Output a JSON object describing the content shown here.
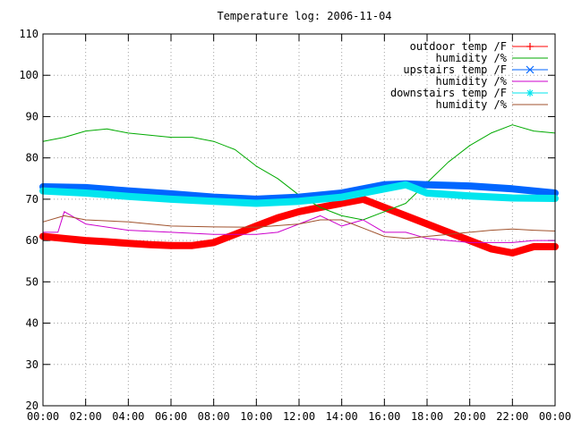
{
  "chart_data": {
    "type": "line",
    "title": "Temperature log: 2006-11-04",
    "xlabel": "",
    "ylabel": "",
    "xlim": [
      0,
      24
    ],
    "ylim": [
      20,
      110
    ],
    "x_ticks": [
      "00:00",
      "02:00",
      "04:00",
      "06:00",
      "08:00",
      "10:00",
      "12:00",
      "14:00",
      "16:00",
      "18:00",
      "20:00",
      "22:00",
      "00:00"
    ],
    "y_ticks": [
      "20",
      "30",
      "40",
      "50",
      "60",
      "70",
      "80",
      "90",
      "100",
      "110"
    ],
    "grid": true,
    "legend_position": "top-right",
    "series": [
      {
        "name": "outdoor temp /F",
        "color": "#ff0000",
        "marker": "plus",
        "x": [
          0,
          1,
          2,
          3,
          4,
          5,
          6,
          7,
          8,
          9,
          10,
          11,
          12,
          13,
          14,
          15,
          16,
          17,
          18,
          19,
          20,
          21,
          22,
          23,
          24
        ],
        "y": [
          61,
          60.5,
          60,
          59.7,
          59.3,
          59,
          58.8,
          58.8,
          59.5,
          61.5,
          63.5,
          65.5,
          67,
          68,
          69,
          70,
          68,
          66,
          64,
          62,
          60,
          58,
          57,
          58.5,
          58.5
        ]
      },
      {
        "name": "humidity /%",
        "color": "#00aa00",
        "marker": "none",
        "x": [
          0,
          1,
          2,
          3,
          4,
          5,
          6,
          7,
          8,
          9,
          10,
          11,
          12,
          13,
          14,
          15,
          16,
          17,
          18,
          19,
          20,
          21,
          22,
          23,
          24
        ],
        "y": [
          84,
          85,
          86.5,
          87,
          86,
          85.5,
          85,
          85,
          84,
          82,
          78,
          75,
          71,
          68,
          66,
          65,
          67,
          69,
          74,
          79,
          83,
          86,
          88,
          86.5,
          86
        ]
      },
      {
        "name": "upstairs temp /F",
        "color": "#0066ff",
        "marker": "cross",
        "x": [
          0,
          2,
          4,
          6,
          8,
          10,
          12,
          14,
          16,
          17,
          18,
          20,
          22,
          24
        ],
        "y": [
          73,
          72.8,
          72,
          71.3,
          70.5,
          70,
          70.5,
          71.5,
          73.5,
          73.7,
          73.5,
          73.2,
          72.5,
          71.5
        ]
      },
      {
        "name": "humidity /%",
        "color": "#cc00cc",
        "marker": "none",
        "x": [
          0,
          0.7,
          1,
          2,
          4,
          6,
          8,
          10,
          11,
          12,
          13,
          14,
          15,
          16,
          17,
          18,
          19,
          20,
          21,
          22,
          23,
          24
        ],
        "y": [
          62,
          62,
          67,
          64,
          62.5,
          62,
          61.5,
          61.5,
          62,
          64,
          66,
          63.5,
          65,
          62,
          62,
          60.5,
          60,
          59.5,
          59.5,
          59.5,
          60,
          60
        ]
      },
      {
        "name": "downstairs temp /F",
        "color": "#00e5ee",
        "marker": "star",
        "x": [
          0,
          2,
          4,
          6,
          8,
          10,
          12,
          14,
          16,
          17,
          18,
          20,
          22,
          24
        ],
        "y": [
          72,
          71.5,
          70.7,
          70,
          69.5,
          69,
          69.5,
          70.5,
          72.5,
          73.5,
          71.5,
          70.8,
          70.3,
          70.2
        ]
      },
      {
        "name": "humidity /%",
        "color": "#a0522d",
        "marker": "none",
        "x": [
          0,
          1,
          2,
          4,
          6,
          8,
          10,
          12,
          13,
          14,
          15,
          16,
          17,
          18,
          19,
          20,
          21,
          22,
          23,
          24
        ],
        "y": [
          64.5,
          66,
          65,
          64.5,
          63.5,
          63.3,
          63.2,
          64,
          65,
          65,
          63,
          61,
          60.5,
          61,
          61.5,
          62,
          62.5,
          62.8,
          62.5,
          62.3
        ]
      }
    ]
  }
}
